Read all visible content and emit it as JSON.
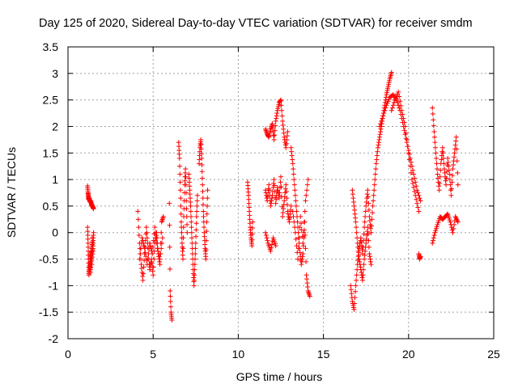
{
  "chart_data": {
    "type": "scatter",
    "title": "Day 125 of 2020, Sidereal Day-to-day VTEC variation (SDTVAR) for receiver smdm",
    "xlabel": "GPS time / hours",
    "ylabel": "SDTVAR / TECUs",
    "xlim": [
      0,
      25
    ],
    "ylim": [
      -2,
      3.5
    ],
    "xticks": [
      "0",
      "5",
      "10",
      "15",
      "20",
      "25"
    ],
    "yticks": [
      "-2",
      "-1.5",
      "-1",
      "-0.5",
      "0",
      "0.5",
      "1",
      "1.5",
      "2",
      "2.5",
      "3",
      "3.5"
    ],
    "grid": true,
    "marker": "+",
    "series": [
      {
        "name": "SDTVAR",
        "color": "#ff0000",
        "segments": [
          {
            "x": [
              1.15,
              1.18,
              1.2,
              1.22,
              1.25,
              1.28,
              1.3,
              1.33,
              1.36,
              1.4,
              1.43,
              1.46,
              1.5
            ],
            "y": [
              0.88,
              0.75,
              0.68,
              0.62,
              0.65,
              0.6,
              0.58,
              0.6,
              0.55,
              0.52,
              0.5,
              0.48,
              0.45
            ]
          },
          {
            "x": [
              1.15,
              1.18,
              1.2,
              1.23,
              1.25,
              1.28,
              1.3,
              1.32,
              1.35,
              1.38,
              1.4,
              1.42,
              1.45,
              1.48,
              1.5
            ],
            "y": [
              0.1,
              -0.2,
              -0.5,
              -0.8,
              -0.7,
              -0.6,
              -0.4,
              -0.75,
              -0.55,
              -0.3,
              -0.6,
              -0.1,
              -0.4,
              -0.2,
              0.0
            ]
          },
          {
            "x": [
              4.1,
              4.2,
              4.3,
              4.4,
              4.5,
              4.6,
              4.7,
              4.8,
              4.9,
              5.0,
              5.1,
              5.2,
              5.3,
              5.4,
              5.5,
              5.6
            ],
            "y": [
              0.4,
              -0.2,
              -0.6,
              -0.9,
              -0.4,
              0.1,
              -0.3,
              -0.7,
              -0.5,
              -0.8,
              -0.2,
              0.0,
              -0.4,
              -0.6,
              0.2,
              0.3
            ]
          },
          {
            "x": [
              4.2,
              4.35,
              4.5,
              4.65,
              4.8,
              4.95,
              5.1,
              5.25,
              5.4,
              5.55
            ],
            "y": [
              -0.5,
              -0.1,
              -0.3,
              -0.6,
              -0.2,
              -0.4,
              0.1,
              -0.3,
              -0.5,
              -0.1
            ]
          },
          {
            "x": [
              5.95,
              6.0,
              6.05,
              6.1
            ],
            "y": [
              0.55,
              -1.1,
              -1.5,
              -1.65
            ]
          },
          {
            "x": [
              6.5,
              6.55,
              6.6,
              6.65,
              6.7,
              6.75,
              6.8,
              6.85,
              6.9,
              6.95,
              7.0
            ],
            "y": [
              1.7,
              1.4,
              0.8,
              0.2,
              -0.2,
              -0.5,
              0.3,
              0.9,
              1.2,
              0.6,
              0.0
            ]
          },
          {
            "x": [
              7.1,
              7.15,
              7.2,
              7.25,
              7.3,
              7.35,
              7.4,
              7.45,
              7.5,
              7.55,
              7.6
            ],
            "y": [
              1.1,
              0.8,
              0.5,
              0.1,
              -0.3,
              -0.7,
              -1.0,
              -0.6,
              -0.2,
              0.3,
              0.7
            ]
          },
          {
            "x": [
              7.7,
              7.75,
              7.8,
              7.85,
              7.9,
              7.95,
              8.0,
              8.05,
              8.1,
              8.15,
              8.2
            ],
            "y": [
              1.3,
              1.6,
              1.75,
              1.4,
              0.9,
              0.4,
              0.0,
              -0.3,
              -0.5,
              0.2,
              0.8
            ]
          },
          {
            "x": [
              10.55,
              10.6,
              10.65,
              10.7,
              10.75,
              10.8,
              10.85
            ],
            "y": [
              0.95,
              0.7,
              0.4,
              0.1,
              -0.1,
              -0.25,
              0.2
            ]
          },
          {
            "x": [
              11.6,
              11.7,
              11.8,
              11.9,
              12.0,
              12.1,
              12.2,
              12.3,
              12.4,
              12.5,
              12.6,
              12.7,
              12.8,
              12.9
            ],
            "y": [
              1.95,
              1.85,
              1.8,
              1.95,
              2.05,
              1.75,
              2.1,
              2.3,
              2.45,
              2.5,
              2.1,
              1.8,
              1.6,
              1.9
            ]
          },
          {
            "x": [
              11.6,
              11.7,
              11.8,
              11.9,
              12.0,
              12.1,
              12.2,
              12.3,
              12.4,
              12.5,
              12.6,
              12.7,
              12.8,
              12.9,
              13.0,
              13.1
            ],
            "y": [
              0.8,
              0.6,
              0.9,
              0.5,
              0.7,
              1.0,
              0.55,
              0.85,
              0.65,
              1.05,
              0.3,
              0.6,
              0.9,
              0.4,
              0.2,
              0.5
            ]
          },
          {
            "x": [
              11.6,
              11.75,
              11.9,
              12.05,
              12.2
            ],
            "y": [
              0.0,
              -0.2,
              -0.35,
              -0.1,
              -0.25
            ]
          },
          {
            "x": [
              13.1,
              13.2,
              13.3,
              13.4,
              13.5,
              13.6,
              13.7,
              13.8,
              13.9,
              14.0,
              14.1,
              14.2
            ],
            "y": [
              1.6,
              1.3,
              0.9,
              0.5,
              0.1,
              -0.3,
              -0.6,
              -0.4,
              0.2,
              -0.8,
              -1.1,
              -1.2
            ]
          },
          {
            "x": [
              13.2,
              13.35,
              13.5,
              13.65,
              13.8,
              13.95,
              14.1
            ],
            "y": [
              0.4,
              0.0,
              -0.5,
              0.3,
              -0.2,
              0.6,
              1.0
            ]
          },
          {
            "x": [
              16.6,
              16.7,
              16.8,
              16.9,
              17.0,
              17.1,
              17.2,
              17.3,
              17.4,
              17.5,
              17.6,
              17.7,
              17.8,
              17.9,
              18.0,
              18.1,
              18.2,
              18.3,
              18.4,
              18.5,
              18.6,
              18.7,
              18.8,
              18.9,
              19.0
            ],
            "y": [
              -1.0,
              -1.3,
              -1.45,
              -1.0,
              -0.6,
              -0.3,
              -0.1,
              -0.4,
              0.1,
              0.5,
              0.8,
              0.3,
              0.0,
              0.5,
              0.9,
              1.3,
              1.6,
              1.8,
              2.0,
              2.2,
              2.4,
              2.6,
              2.75,
              2.9,
              3.02
            ]
          },
          {
            "x": [
              16.7,
              16.8,
              16.9,
              17.0,
              17.1,
              17.2,
              17.3,
              17.4,
              17.5,
              17.6,
              17.7,
              17.8
            ],
            "y": [
              0.8,
              0.5,
              0.2,
              -0.2,
              -0.5,
              -0.7,
              -0.9,
              -0.5,
              -0.2,
              0.1,
              -0.4,
              -0.6
            ]
          },
          {
            "x": [
              18.3,
              18.5,
              18.7,
              18.9,
              19.1,
              19.3,
              19.5,
              19.7,
              19.9,
              20.1,
              20.3,
              20.5,
              20.7
            ],
            "y": [
              2.0,
              2.2,
              2.4,
              2.55,
              2.6,
              2.5,
              2.3,
              2.0,
              1.7,
              1.4,
              1.1,
              0.8,
              0.6
            ]
          },
          {
            "x": [
              19.0,
              19.2,
              19.4,
              19.6,
              19.8,
              20.0,
              20.2,
              20.4,
              20.6
            ],
            "y": [
              2.3,
              2.5,
              2.65,
              2.3,
              2.0,
              1.5,
              1.0,
              0.7,
              0.4
            ]
          },
          {
            "x": [
              20.6,
              20.65,
              20.7
            ],
            "y": [
              -0.4,
              -0.5,
              -0.45
            ]
          },
          {
            "x": [
              21.4,
              21.5,
              21.6,
              21.7,
              21.8,
              21.9,
              22.0,
              22.1,
              22.2,
              22.3,
              22.4,
              22.5,
              22.6,
              22.7,
              22.8,
              22.9
            ],
            "y": [
              2.35,
              1.9,
              1.5,
              1.1,
              0.8,
              1.3,
              1.6,
              1.2,
              0.9,
              1.4,
              1.1,
              0.7,
              1.2,
              1.5,
              1.8,
              0.9
            ]
          },
          {
            "x": [
              21.4,
              21.55,
              21.7,
              21.85,
              22.0,
              22.15,
              22.3,
              22.45,
              22.6,
              22.75,
              22.9
            ],
            "y": [
              -0.2,
              0.0,
              0.15,
              0.3,
              0.25,
              0.3,
              0.35,
              0.2,
              0.0,
              0.3,
              0.2
            ]
          }
        ]
      }
    ]
  }
}
